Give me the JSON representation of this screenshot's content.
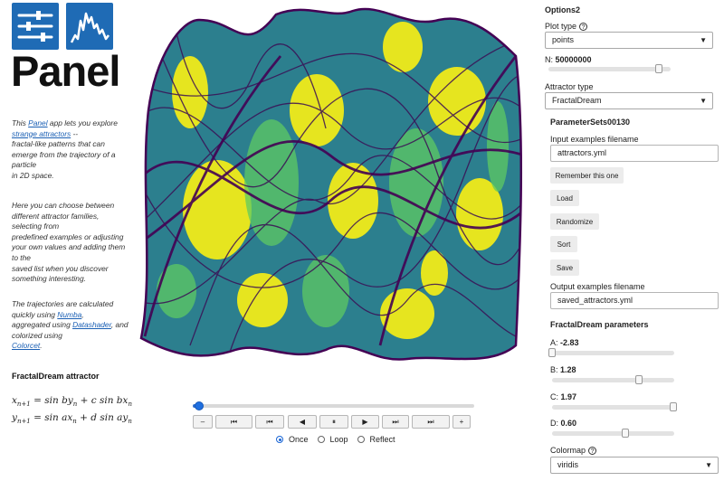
{
  "logo": {
    "wordmark": "Panel"
  },
  "sidebar": {
    "intro": {
      "p1_prefix": "This ",
      "p1_link1": "Panel",
      "p1_mid": " app lets you explore",
      "p1_link2": "strange attractors",
      "p1_rest1": " --",
      "p1_rest2": "fractal-like patterns that can",
      "p1_rest3": "emerge from the trajectory of a",
      "p1_rest4": "particle",
      "p1_rest5": "in 2D space.",
      "p2_l1": "Here you can choose between",
      "p2_l2": "different attractor families,",
      "p2_l3": "selecting from",
      "p2_l4": "predefined examples or adjusting",
      "p2_l5": "your own values and adding them",
      "p2_l6": "to the",
      "p2_l7": "saved list when you discover",
      "p2_l8": "something interesting.",
      "p3_l1": "The trajectories are calculated",
      "p3_l2": "quickly using ",
      "p3_link1": "Numba",
      "p3_l2b": ",",
      "p3_l3": "aggregated using ",
      "p3_link2": "Datashader",
      "p3_l3b": ", and",
      "p3_l4": "colorized using",
      "p3_link3": "Colorcet",
      "p3_l4b": "."
    },
    "equation_title": "FractalDream attractor",
    "eq1": {
      "lhs": "x",
      "sub": "n+1",
      "rhs": " = sin by",
      "sub2": "n",
      "rest": " + c sin bx",
      "sub3": "n"
    },
    "eq2": {
      "lhs": "y",
      "sub": "n+1",
      "rhs": " = sin ax",
      "sub2": "n",
      "rest": " + d sin ay",
      "sub3": "n"
    }
  },
  "player": {
    "progress": 0.02,
    "buttons": [
      "–",
      "⏮",
      "⏮",
      "◀",
      "⏸",
      "▶",
      "⏭",
      "⏭",
      "+"
    ],
    "loop_options": [
      "Once",
      "Loop",
      "Reflect"
    ],
    "selected_loop": "Once"
  },
  "options": {
    "title": "Options2",
    "plot_type_label": "Plot type",
    "plot_type_value": "points",
    "n_label": "N:",
    "n_value": "50000000",
    "n_level": 0.9,
    "attractor_type_label": "Attractor type",
    "attractor_type_value": "FractalDream",
    "paramsets_title": "ParameterSets00130",
    "input_examples_label": "Input examples filename",
    "input_examples_value": "attractors.yml",
    "remember_button": "Remember this one",
    "load_button": "Load",
    "randomize_button": "Randomize",
    "sort_button": "Sort",
    "save_button": "Save",
    "output_examples_label": "Output examples filename",
    "output_examples_value": "saved_attractors.yml",
    "params_title": "FractalDream parameters",
    "params": [
      {
        "label": "A:",
        "value": "-2.83",
        "level": 0.0
      },
      {
        "label": "B:",
        "value": "1.28",
        "level": 0.71
      },
      {
        "label": "C:",
        "value": "1.97",
        "level": 0.99
      },
      {
        "label": "D:",
        "value": "0.60",
        "level": 0.6
      }
    ],
    "colormap_label": "Colormap",
    "colormap_value": "viridis"
  },
  "colors": {
    "brand_blue": "#1f6bb5",
    "viridis_dark": "#440154",
    "viridis_mid": "#21918c",
    "viridis_light": "#5ec962",
    "viridis_yellow": "#fde725"
  }
}
